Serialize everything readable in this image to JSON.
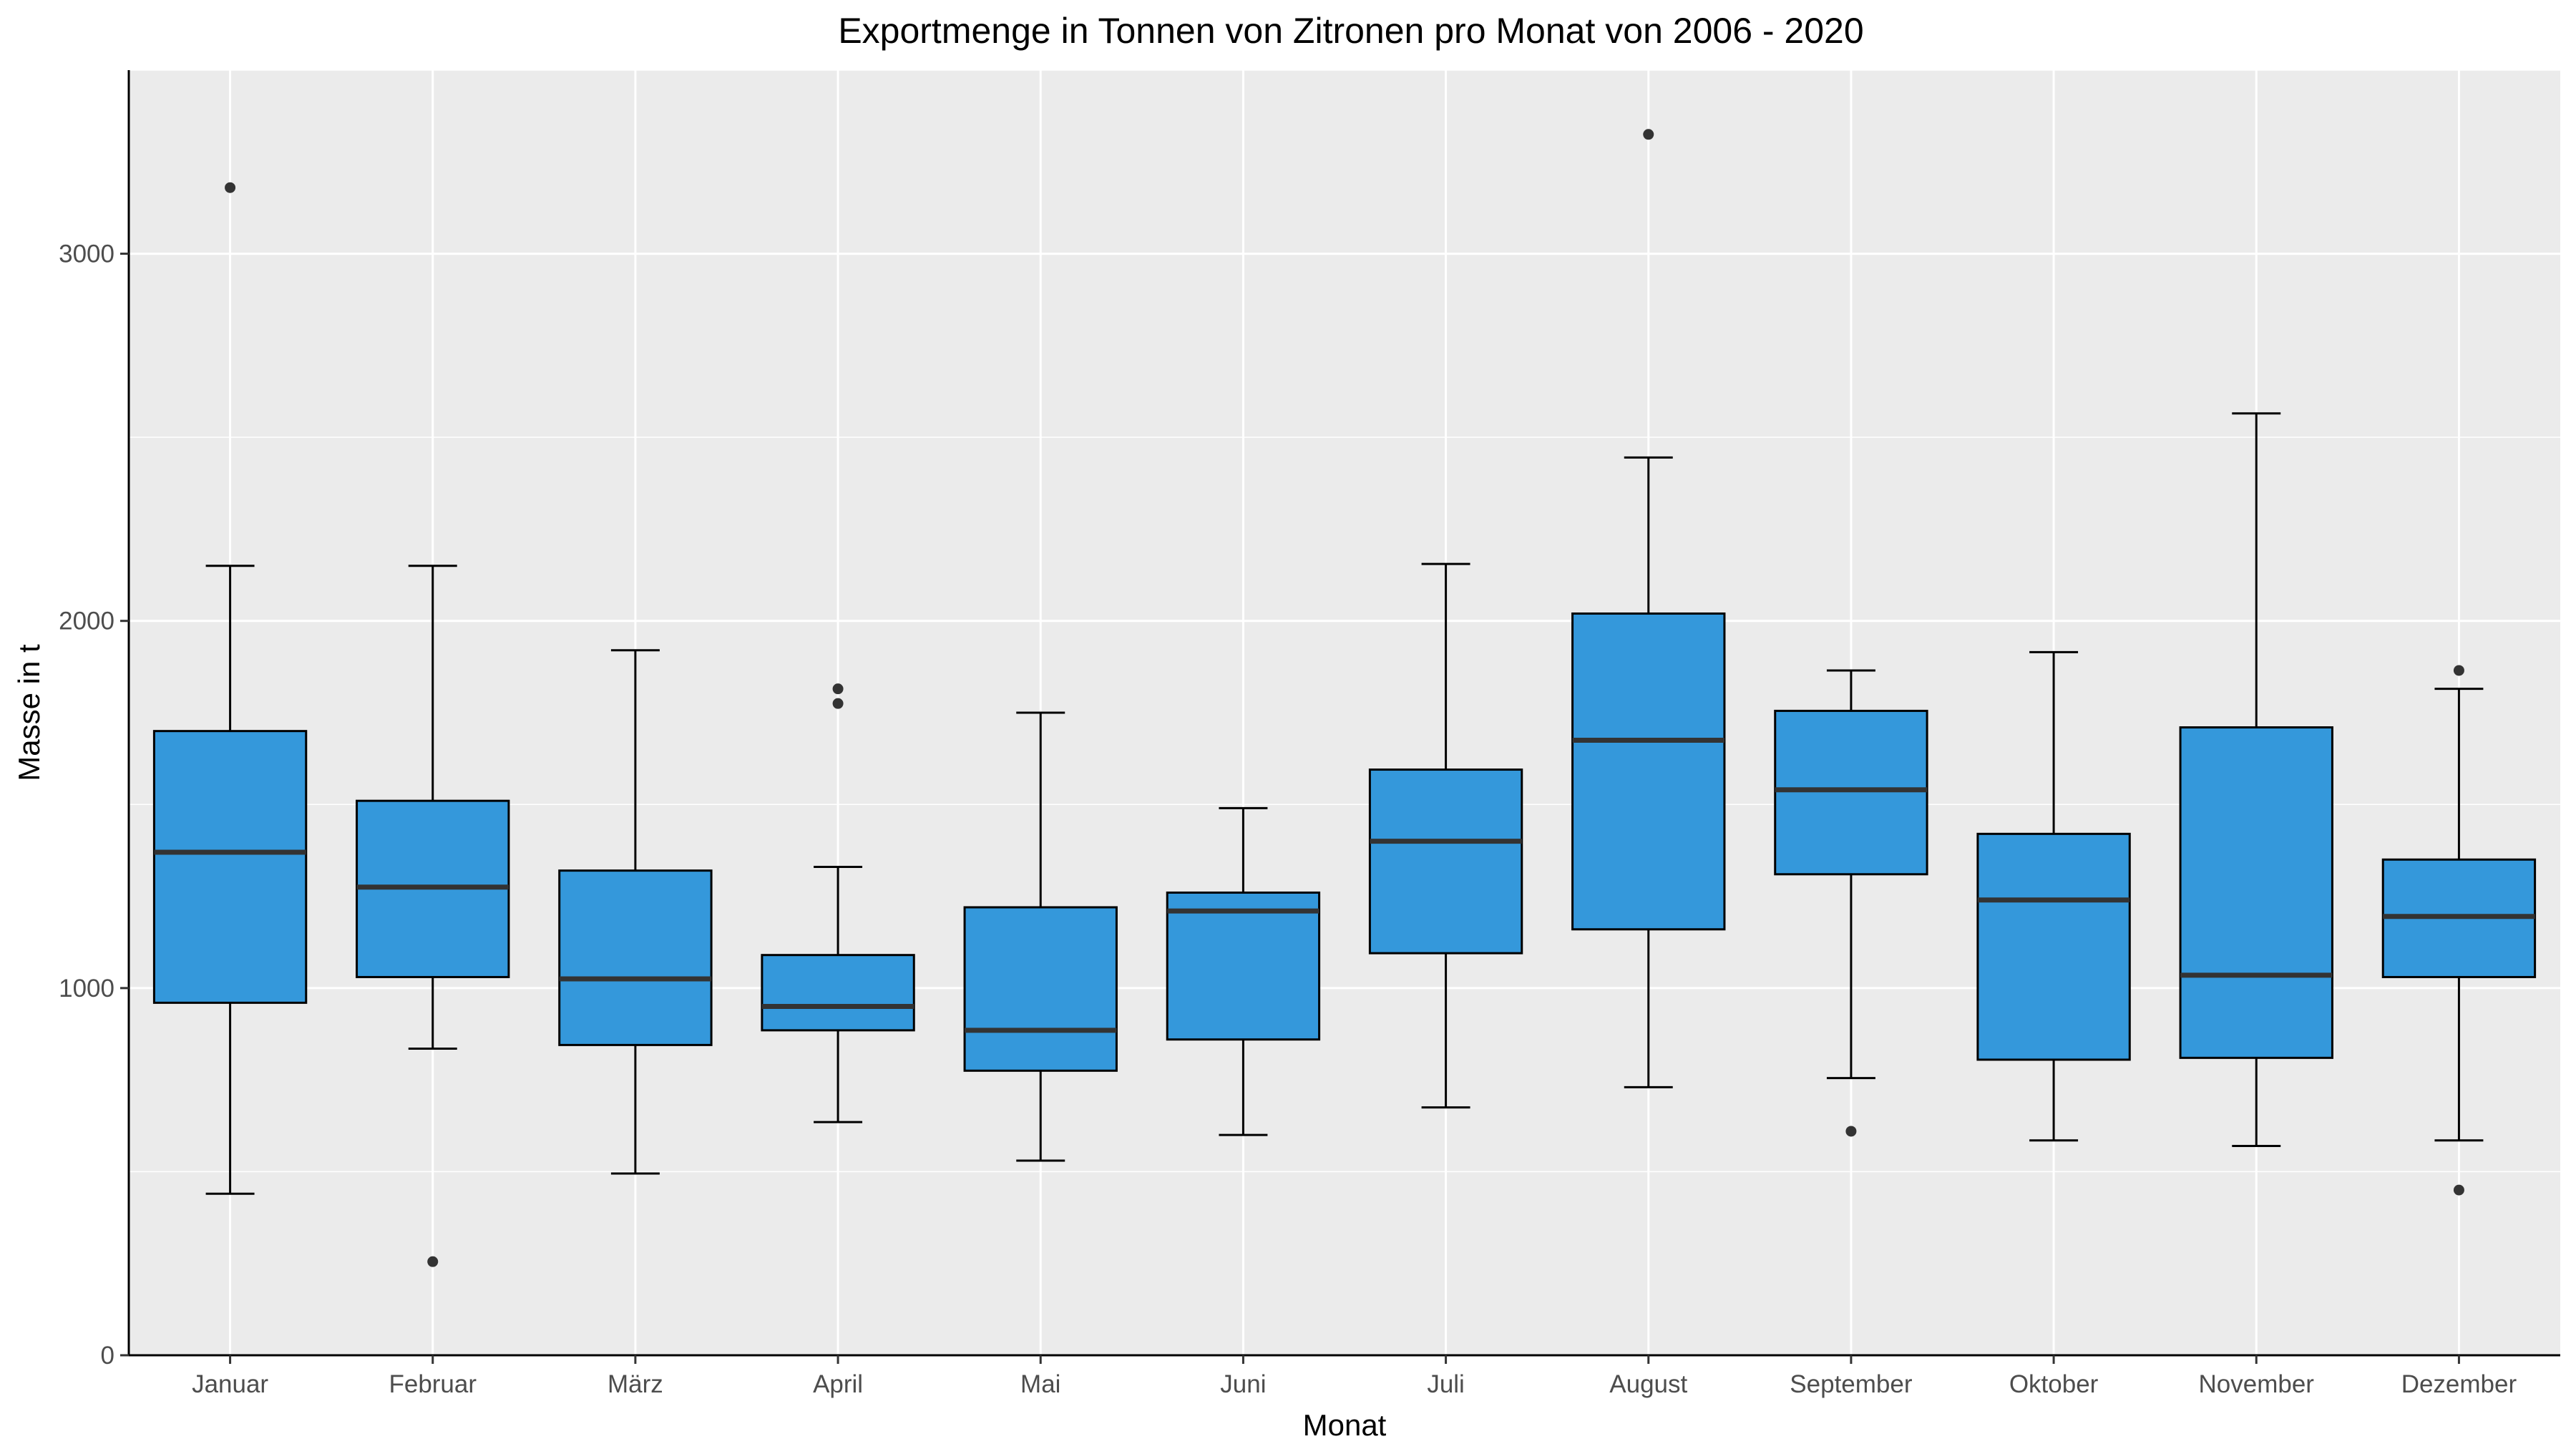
{
  "chart_data": {
    "type": "boxplot",
    "title": "Exportmenge in Tonnen von Zitronen pro Monat von 2006 - 2020",
    "xlabel": "Monat",
    "ylabel": "Masse in t",
    "ylim": [
      0,
      3500
    ],
    "yticks": [
      0,
      1000,
      2000,
      3000
    ],
    "grid": true,
    "legend": "none",
    "colors": {
      "box_fill": "#3498db",
      "panel": "#ebebeb",
      "grid": "#ffffff",
      "outline": "#000000",
      "median": "#333333"
    },
    "categories": [
      "Januar",
      "Februar",
      "März",
      "April",
      "Mai",
      "Juni",
      "Juli",
      "August",
      "September",
      "Oktober",
      "November",
      "Dezember"
    ],
    "boxes": [
      {
        "whisker_low": 440,
        "q1": 960,
        "median": 1370,
        "q3": 1700,
        "whisker_high": 2150,
        "outliers": [
          3180
        ]
      },
      {
        "whisker_low": 835,
        "q1": 1030,
        "median": 1275,
        "q3": 1510,
        "whisker_high": 2150,
        "outliers": [
          255
        ]
      },
      {
        "whisker_low": 495,
        "q1": 845,
        "median": 1025,
        "q3": 1320,
        "whisker_high": 1920,
        "outliers": []
      },
      {
        "whisker_low": 635,
        "q1": 885,
        "median": 950,
        "q3": 1090,
        "whisker_high": 1330,
        "outliers": [
          1775,
          1815
        ]
      },
      {
        "whisker_low": 530,
        "q1": 775,
        "median": 885,
        "q3": 1220,
        "whisker_high": 1750,
        "outliers": []
      },
      {
        "whisker_low": 600,
        "q1": 860,
        "median": 1210,
        "q3": 1260,
        "whisker_high": 1490,
        "outliers": []
      },
      {
        "whisker_low": 675,
        "q1": 1095,
        "median": 1400,
        "q3": 1595,
        "whisker_high": 2155,
        "outliers": []
      },
      {
        "whisker_low": 730,
        "q1": 1160,
        "median": 1675,
        "q3": 2020,
        "whisker_high": 2445,
        "outliers": [
          3325
        ]
      },
      {
        "whisker_low": 755,
        "q1": 1310,
        "median": 1540,
        "q3": 1755,
        "whisker_high": 1865,
        "outliers": [
          610
        ]
      },
      {
        "whisker_low": 585,
        "q1": 805,
        "median": 1240,
        "q3": 1420,
        "whisker_high": 1915,
        "outliers": []
      },
      {
        "whisker_low": 570,
        "q1": 810,
        "median": 1035,
        "q3": 1710,
        "whisker_high": 2565,
        "outliers": []
      },
      {
        "whisker_low": 585,
        "q1": 1030,
        "median": 1195,
        "q3": 1350,
        "whisker_high": 1815,
        "outliers": [
          450,
          1865
        ]
      }
    ]
  }
}
